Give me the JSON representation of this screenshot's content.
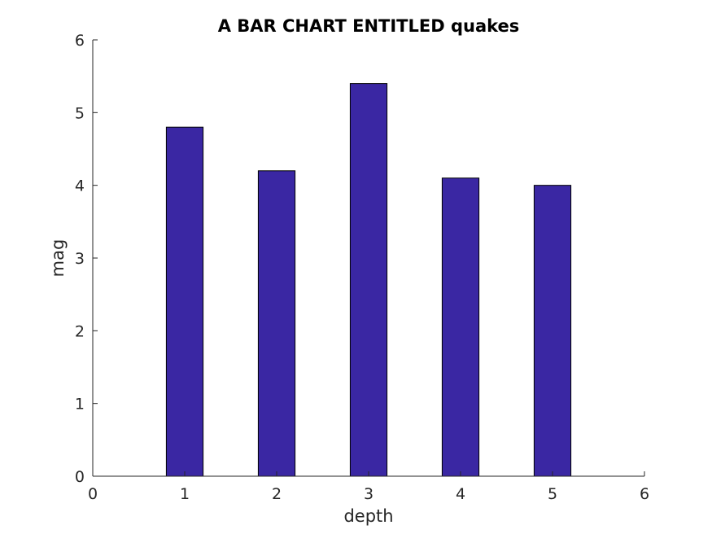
{
  "chart_data": {
    "type": "bar",
    "title": "A BAR CHART ENTITLED quakes",
    "xlabel": "depth",
    "ylabel": "mag",
    "x": [
      1,
      2,
      3,
      4,
      5
    ],
    "values": [
      4.8,
      4.2,
      5.4,
      4.1,
      4.0
    ],
    "xlim": [
      0,
      6
    ],
    "ylim": [
      0,
      6
    ],
    "xticks": [
      "0",
      "1",
      "2",
      "3",
      "4",
      "5",
      "6"
    ],
    "yticks": [
      "0",
      "1",
      "2",
      "3",
      "4",
      "5",
      "6"
    ],
    "grid": false,
    "bar_color": "#3a27a3"
  }
}
